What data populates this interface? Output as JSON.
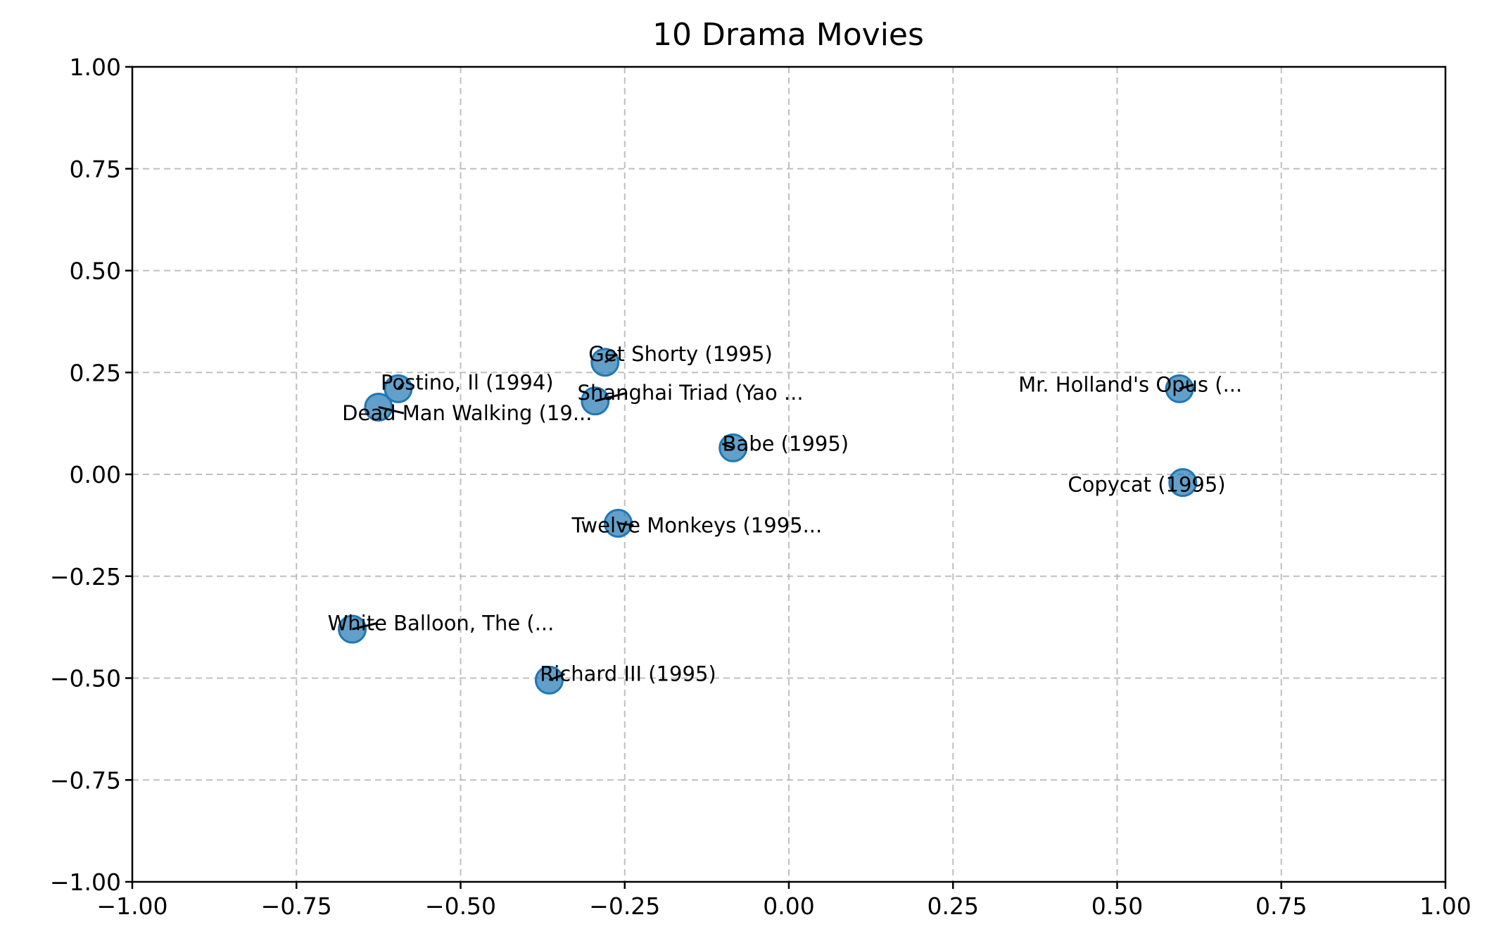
{
  "chart_data": {
    "type": "scatter",
    "title": "10 Drama Movies",
    "xlabel": "",
    "ylabel": "",
    "xlim": [
      -1.0,
      1.0
    ],
    "ylim": [
      -1.0,
      1.0
    ],
    "grid": true,
    "xticks": [
      "−1.00",
      "−0.75",
      "−0.50",
      "−0.25",
      "0.00",
      "0.25",
      "0.50",
      "0.75",
      "1.00"
    ],
    "yticks": [
      "1.00",
      "0.75",
      "0.50",
      "0.25",
      "0.00",
      "−0.25",
      "−0.50",
      "−0.75",
      "−1.00"
    ],
    "points": [
      {
        "label": "Get Shorty (1995)",
        "x": -0.28,
        "y": 0.275,
        "label_x": -0.165,
        "label_y": 0.295
      },
      {
        "label": "Postino, Il (1994)",
        "x": -0.595,
        "y": 0.21,
        "label_x": -0.49,
        "label_y": 0.225
      },
      {
        "label": "Shanghai Triad (Yao ...",
        "x": -0.295,
        "y": 0.18,
        "label_x": -0.15,
        "label_y": 0.2
      },
      {
        "label": "Dead Man Walking (19...",
        "x": -0.625,
        "y": 0.165,
        "label_x": -0.49,
        "label_y": 0.15
      },
      {
        "label": "Mr. Holland's Opus (...",
        "x": 0.595,
        "y": 0.21,
        "label_x": 0.52,
        "label_y": 0.22
      },
      {
        "label": "Babe (1995)",
        "x": -0.085,
        "y": 0.065,
        "label_x": -0.005,
        "label_y": 0.075
      },
      {
        "label": "Copycat (1995)",
        "x": 0.6,
        "y": -0.02,
        "label_x": 0.545,
        "label_y": -0.025
      },
      {
        "label": "Twelve Monkeys (1995...",
        "x": -0.26,
        "y": -0.12,
        "label_x": -0.14,
        "label_y": -0.125
      },
      {
        "label": "White Balloon, The (...",
        "x": -0.665,
        "y": -0.38,
        "label_x": -0.53,
        "label_y": -0.365
      },
      {
        "label": "Richard III (1995)",
        "x": -0.365,
        "y": -0.505,
        "label_x": -0.245,
        "label_y": -0.49
      }
    ]
  }
}
